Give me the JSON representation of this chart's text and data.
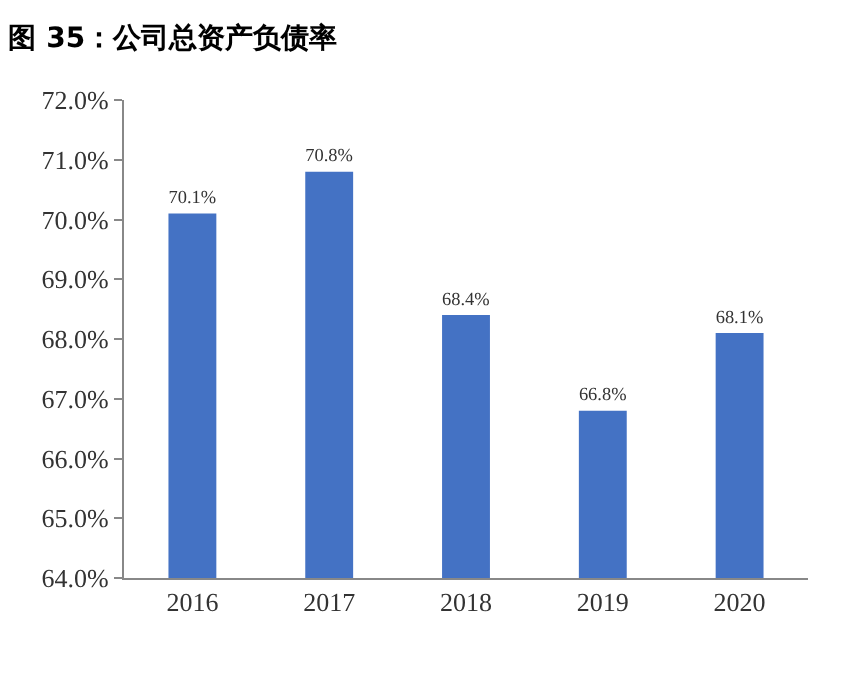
{
  "chart_data": {
    "type": "bar",
    "title": "图 35：公司总资产负债率",
    "categories": [
      "2016",
      "2017",
      "2018",
      "2019",
      "2020"
    ],
    "values": [
      70.1,
      70.8,
      68.4,
      66.8,
      68.1
    ],
    "value_labels": [
      "70.1%",
      "70.8%",
      "68.4%",
      "66.8%",
      "68.1%"
    ],
    "color": "#4472c4",
    "ylim": [
      64,
      72
    ],
    "yticks": [
      {
        "value": 64,
        "label": "64.0%"
      },
      {
        "value": 65,
        "label": "65.0%"
      },
      {
        "value": 66,
        "label": "66.0%"
      },
      {
        "value": 67,
        "label": "67.0%"
      },
      {
        "value": 68,
        "label": "68.0%"
      },
      {
        "value": 69,
        "label": "69.0%"
      },
      {
        "value": 70,
        "label": "70.0%"
      },
      {
        "value": 71,
        "label": "71.0%"
      },
      {
        "value": 72,
        "label": "72.0%"
      }
    ],
    "legend": false
  }
}
